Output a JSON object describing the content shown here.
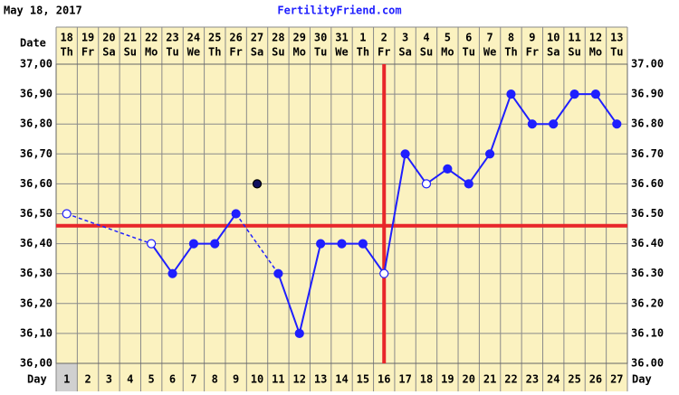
{
  "chart_data": {
    "type": "line",
    "title": "FertilityFriend.com",
    "date": "May 18, 2017",
    "x_label_top": "Date",
    "x_label_bottom": "Day",
    "categories": [
      1,
      2,
      3,
      4,
      5,
      6,
      7,
      8,
      9,
      10,
      11,
      12,
      13,
      14,
      15,
      16,
      17,
      18,
      19,
      20,
      21,
      22,
      23,
      24,
      25,
      26,
      27
    ],
    "dates": [
      "18",
      "19",
      "20",
      "21",
      "22",
      "23",
      "24",
      "25",
      "26",
      "27",
      "28",
      "29",
      "30",
      "31",
      "1",
      "2",
      "3",
      "4",
      "5",
      "6",
      "7",
      "8",
      "9",
      "10",
      "11",
      "12",
      "13"
    ],
    "weekdays": [
      "Th",
      "Fr",
      "Sa",
      "Su",
      "Mo",
      "Tu",
      "We",
      "Th",
      "Fr",
      "Sa",
      "Su",
      "Mo",
      "Tu",
      "We",
      "Th",
      "Fr",
      "Sa",
      "Su",
      "Mo",
      "Tu",
      "We",
      "Th",
      "Fr",
      "Sa",
      "Su",
      "Mo",
      "Tu"
    ],
    "ylim": [
      36.0,
      37.0
    ],
    "yticks": [
      {
        "value": 36.0,
        "label": "36,00"
      },
      {
        "value": 36.1,
        "label": "36,10"
      },
      {
        "value": 36.2,
        "label": "36,20"
      },
      {
        "value": 36.3,
        "label": "36,30"
      },
      {
        "value": 36.4,
        "label": "36,40"
      },
      {
        "value": 36.5,
        "label": "36,50"
      },
      {
        "value": 36.6,
        "label": "36,60"
      },
      {
        "value": 36.7,
        "label": "36,70"
      },
      {
        "value": 36.8,
        "label": "36,80"
      },
      {
        "value": 36.9,
        "label": "36,90"
      },
      {
        "value": 37.0,
        "label": "37,00"
      }
    ],
    "y2lim": [
      36.0,
      37.0
    ],
    "y2ticks": [
      {
        "value": 36.0,
        "label": "36.00"
      },
      {
        "value": 36.1,
        "label": "36.10"
      },
      {
        "value": 36.2,
        "label": "36.20"
      },
      {
        "value": 36.3,
        "label": "36.30"
      },
      {
        "value": 36.4,
        "label": "36.40"
      },
      {
        "value": 36.5,
        "label": "36.50"
      },
      {
        "value": 36.6,
        "label": "36.60"
      },
      {
        "value": 36.7,
        "label": "36.70"
      },
      {
        "value": 36.8,
        "label": "36.80"
      },
      {
        "value": 36.9,
        "label": "36.90"
      },
      {
        "value": 37.0,
        "label": "37.00"
      }
    ],
    "grid": true,
    "series": [
      {
        "color": "#1f1fff",
        "values": [
          36.5,
          null,
          null,
          null,
          36.4,
          36.3,
          36.4,
          36.4,
          36.5,
          null,
          36.3,
          36.1,
          36.4,
          36.4,
          36.4,
          36.3,
          36.7,
          36.6,
          36.65,
          36.6,
          36.7,
          36.9,
          36.8,
          36.8,
          36.9,
          36.9,
          36.8
        ],
        "hollow": [
          true,
          null,
          null,
          null,
          true,
          false,
          false,
          false,
          false,
          null,
          false,
          false,
          false,
          false,
          false,
          true,
          false,
          true,
          false,
          false,
          false,
          false,
          false,
          false,
          false,
          false,
          false
        ]
      },
      {
        "color": "#101060",
        "values": [
          null,
          null,
          null,
          null,
          null,
          null,
          null,
          null,
          null,
          36.6,
          null,
          null,
          null,
          null,
          null,
          null,
          null,
          null,
          null,
          null,
          null,
          null,
          null,
          null,
          null,
          null,
          null
        ]
      }
    ],
    "coverline": 36.46,
    "ovulation_day": 16,
    "marker_color": "#e8262a"
  }
}
